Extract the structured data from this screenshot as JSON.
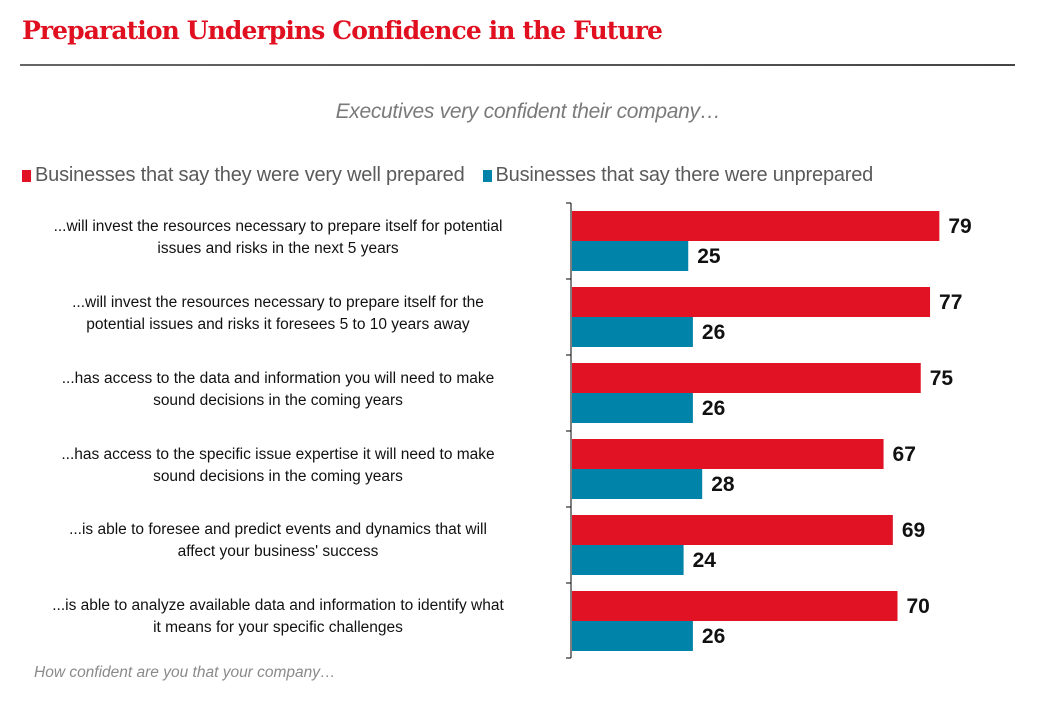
{
  "header": {
    "title": "Preparation Underpins Confidence in the Future",
    "subtitle": "Executives very confident their company…"
  },
  "footnote": "How confident are you that your company…",
  "colors": {
    "title": "#e01020",
    "prepared": "#e01224",
    "unprepared": "#0083a9",
    "axis": "#000000"
  },
  "chart_data": {
    "type": "bar",
    "orientation": "horizontal",
    "title": "Preparation Underpins Confidence in the Future",
    "subtitle": "Executives very confident their company…",
    "xlabel": "",
    "ylabel": "How confident are you that your company…",
    "xlim": [
      0,
      100
    ],
    "grid": false,
    "legend_position": "top-left",
    "categories": [
      "...will invest the resources necessary to prepare itself for potential issues and risks in the next 5 years",
      "...will invest the resources necessary to prepare itself for the potential issues and risks it foresees 5 to 10 years away",
      "...has access to the data and information you will need to make sound decisions in the coming years",
      "...has access to the specific issue expertise it will need to make sound decisions in the coming years",
      "...is able to foresee and predict events and dynamics that will affect your business' success",
      "...is able to analyze available data and information to identify what it means for your specific challenges"
    ],
    "category_lines": [
      [
        "...will invest the resources necessary to prepare itself for potential",
        "issues and risks in the next 5 years"
      ],
      [
        "...will invest the resources necessary to prepare itself for the",
        "potential issues and risks it foresees 5 to 10 years away"
      ],
      [
        "...has access to the data and information you will need to make",
        "sound decisions in the coming years"
      ],
      [
        "...has access to the specific issue expertise it will need to make",
        "sound decisions in the coming years"
      ],
      [
        "...is able to foresee and predict events and dynamics that will",
        "affect your business' success"
      ],
      [
        "...is able to analyze available data and information to identify what",
        "it means for your specific challenges"
      ]
    ],
    "series": [
      {
        "name": "Businesses that say they were very well prepared",
        "color": "#e01224",
        "values": [
          79,
          77,
          75,
          67,
          69,
          70
        ]
      },
      {
        "name": "Businesses that say there were unprepared",
        "color": "#0083a9",
        "values": [
          25,
          26,
          26,
          28,
          24,
          26
        ]
      }
    ]
  }
}
